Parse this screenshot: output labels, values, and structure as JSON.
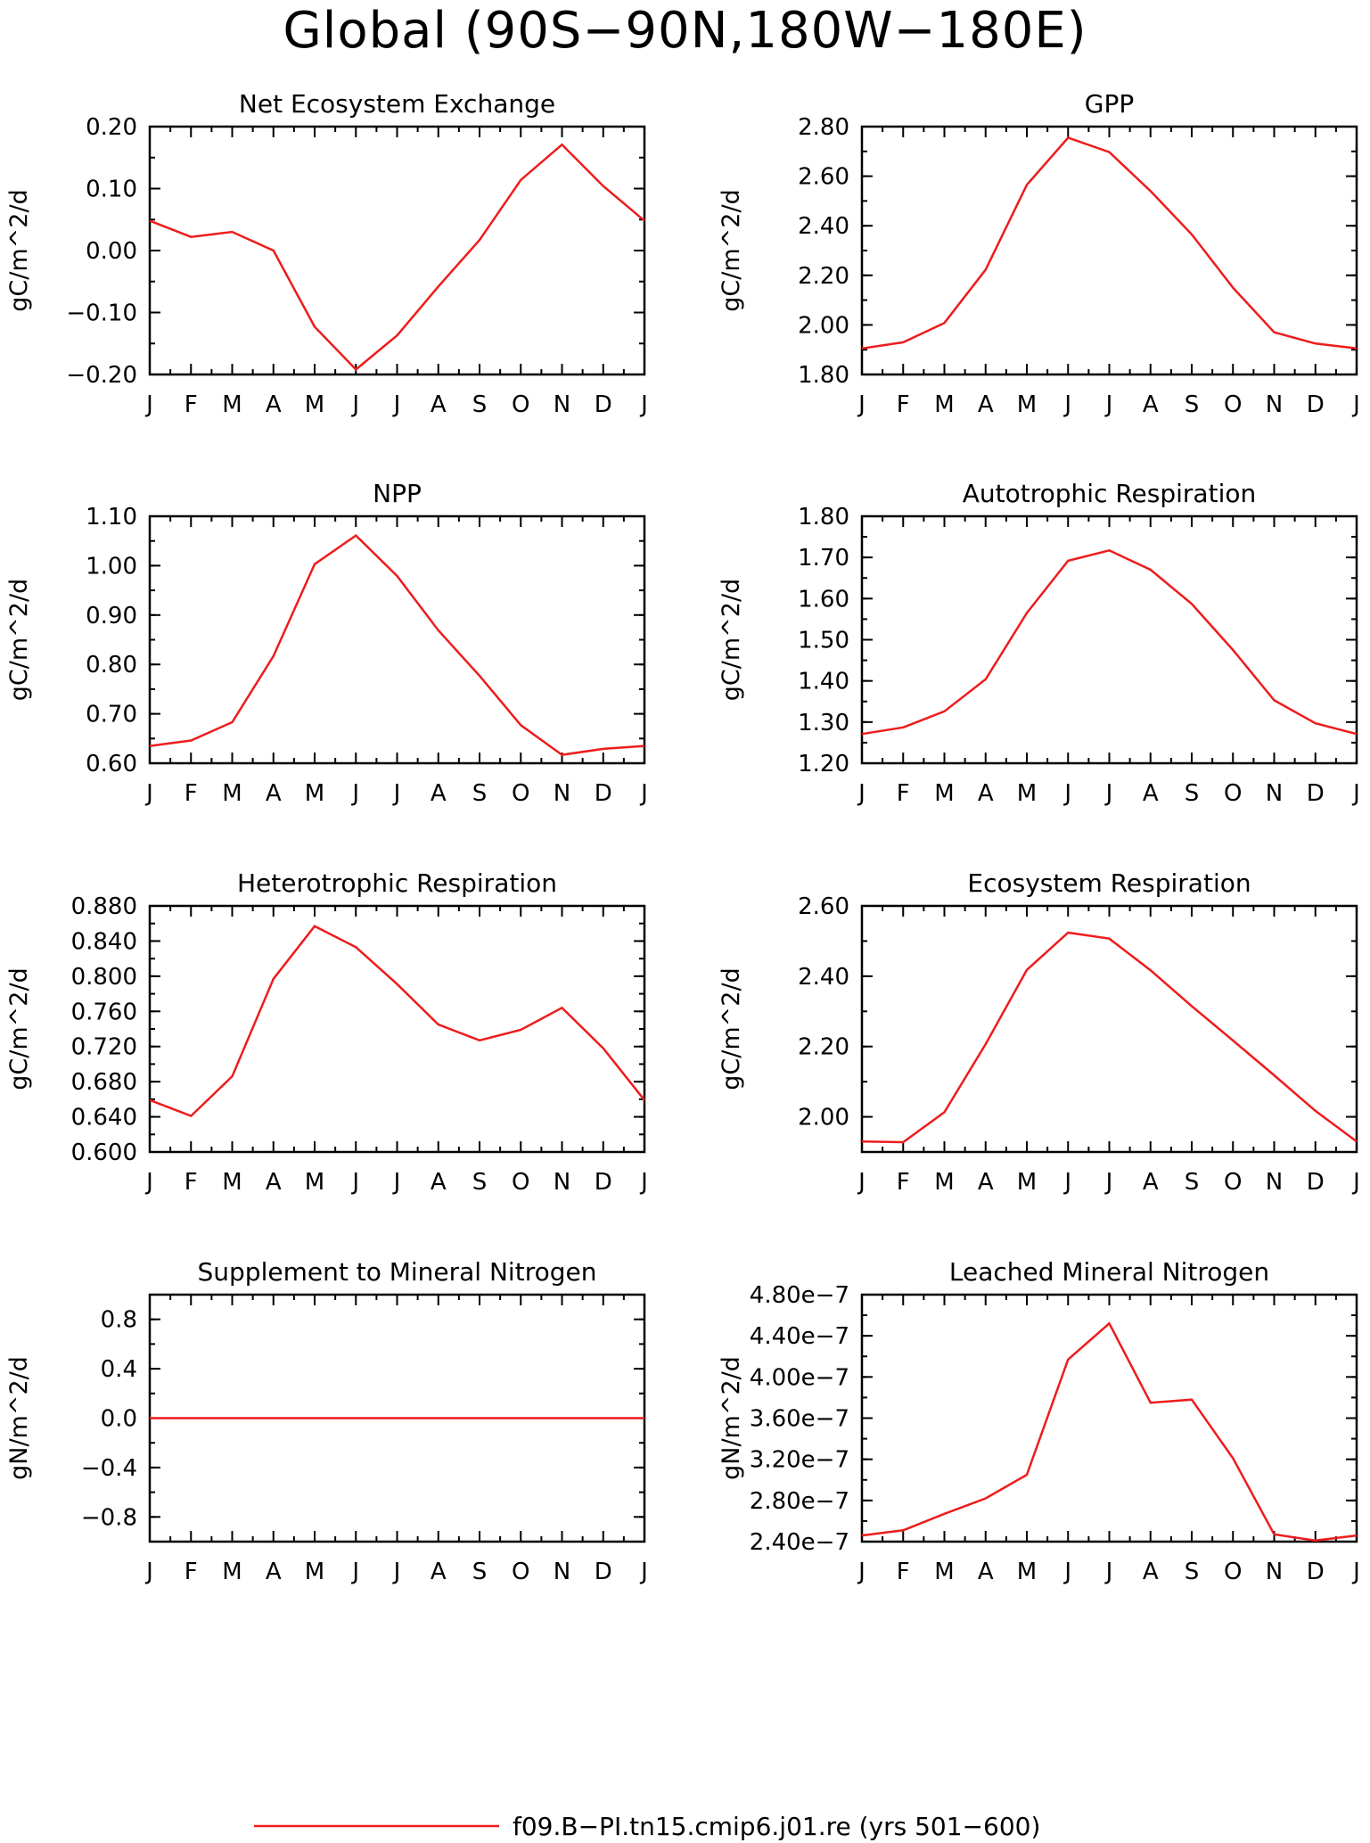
{
  "title": "Global (90S-90N,180W-180E)",
  "legend": {
    "label": "f09.B-PI.tn15.cmip6.j01.re (yrs 501-600)",
    "color": "#ee1c1c"
  },
  "chart_data": [
    {
      "type": "line",
      "title": "Net Ecosystem Exchange",
      "ylabel": "gC/m^2/d",
      "categories": [
        "J",
        "F",
        "M",
        "A",
        "M",
        "J",
        "J",
        "A",
        "S",
        "O",
        "N",
        "D",
        "J"
      ],
      "ylim": [
        -0.2,
        0.2
      ],
      "yticks": [
        -0.2,
        -0.1,
        0.0,
        0.1,
        0.2
      ],
      "ytick_labels": [
        "-0.20",
        "-0.10",
        "0.00",
        "0.10",
        "0.20"
      ],
      "series": [
        {
          "values": [
            0.048,
            0.022,
            0.03,
            0.0,
            -0.123,
            -0.192,
            -0.137,
            -0.058,
            0.017,
            0.114,
            0.171,
            0.104,
            0.048
          ]
        }
      ]
    },
    {
      "type": "line",
      "title": "GPP",
      "ylabel": "gC/m^2/d",
      "categories": [
        "J",
        "F",
        "M",
        "A",
        "M",
        "J",
        "J",
        "A",
        "S",
        "O",
        "N",
        "D",
        "J"
      ],
      "ylim": [
        1.8,
        2.8
      ],
      "yticks": [
        1.8,
        2.0,
        2.2,
        2.4,
        2.6,
        2.8
      ],
      "ytick_labels": [
        "1.80",
        "2.00",
        "2.20",
        "2.40",
        "2.60",
        "2.80"
      ],
      "series": [
        {
          "values": [
            1.905,
            1.93,
            2.008,
            2.223,
            2.565,
            2.755,
            2.697,
            2.54,
            2.365,
            2.15,
            1.97,
            1.925,
            1.905
          ]
        }
      ]
    },
    {
      "type": "line",
      "title": "NPP",
      "ylabel": "gC/m^2/d",
      "categories": [
        "J",
        "F",
        "M",
        "A",
        "M",
        "J",
        "J",
        "A",
        "S",
        "O",
        "N",
        "D",
        "J"
      ],
      "ylim": [
        0.6,
        1.1
      ],
      "yticks": [
        0.6,
        0.7,
        0.8,
        0.9,
        1.0,
        1.1
      ],
      "ytick_labels": [
        "0.60",
        "0.70",
        "0.80",
        "0.90",
        "1.00",
        "1.10"
      ],
      "series": [
        {
          "values": [
            0.635,
            0.646,
            0.683,
            0.817,
            1.003,
            1.061,
            0.979,
            0.869,
            0.777,
            0.677,
            0.617,
            0.629,
            0.635
          ]
        }
      ]
    },
    {
      "type": "line",
      "title": "Autotrophic Respiration",
      "ylabel": "gC/m^2/d",
      "categories": [
        "J",
        "F",
        "M",
        "A",
        "M",
        "J",
        "J",
        "A",
        "S",
        "O",
        "N",
        "D",
        "J"
      ],
      "ylim": [
        1.2,
        1.8
      ],
      "yticks": [
        1.2,
        1.3,
        1.4,
        1.5,
        1.6,
        1.7,
        1.8
      ],
      "ytick_labels": [
        "1.20",
        "1.30",
        "1.40",
        "1.50",
        "1.60",
        "1.70",
        "1.80"
      ],
      "series": [
        {
          "values": [
            1.271,
            1.287,
            1.326,
            1.404,
            1.565,
            1.692,
            1.717,
            1.67,
            1.587,
            1.475,
            1.353,
            1.297,
            1.271
          ]
        }
      ]
    },
    {
      "type": "line",
      "title": "Heterotrophic Respiration",
      "ylabel": "gC/m^2/d",
      "categories": [
        "J",
        "F",
        "M",
        "A",
        "M",
        "J",
        "J",
        "A",
        "S",
        "O",
        "N",
        "D",
        "J"
      ],
      "ylim": [
        0.6,
        0.88
      ],
      "yticks": [
        0.6,
        0.64,
        0.68,
        0.72,
        0.76,
        0.8,
        0.84,
        0.88
      ],
      "ytick_labels": [
        "0.600",
        "0.640",
        "0.680",
        "0.720",
        "0.760",
        "0.800",
        "0.840",
        "0.880"
      ],
      "series": [
        {
          "values": [
            0.659,
            0.641,
            0.686,
            0.797,
            0.857,
            0.833,
            0.791,
            0.745,
            0.727,
            0.739,
            0.764,
            0.718,
            0.659
          ]
        }
      ]
    },
    {
      "type": "line",
      "title": "Ecosystem Respiration",
      "ylabel": "gC/m^2/d",
      "categories": [
        "J",
        "F",
        "M",
        "A",
        "M",
        "J",
        "J",
        "A",
        "S",
        "O",
        "N",
        "D",
        "J"
      ],
      "ylim": [
        1.9,
        2.6
      ],
      "yticks": [
        2.0,
        2.2,
        2.4,
        2.6
      ],
      "ytick_labels": [
        "2.00",
        "2.20",
        "2.40",
        "2.60"
      ],
      "series": [
        {
          "values": [
            1.93,
            1.928,
            2.013,
            2.207,
            2.418,
            2.524,
            2.507,
            2.417,
            2.315,
            2.217,
            2.118,
            2.017,
            1.93
          ]
        }
      ]
    },
    {
      "type": "line",
      "title": "Supplement to Mineral Nitrogen",
      "ylabel": "gN/m^2/d",
      "categories": [
        "J",
        "F",
        "M",
        "A",
        "M",
        "J",
        "J",
        "A",
        "S",
        "O",
        "N",
        "D",
        "J"
      ],
      "ylim": [
        -1.0,
        1.0
      ],
      "yticks": [
        -0.8,
        -0.4,
        0.0,
        0.4,
        0.8
      ],
      "ytick_labels": [
        "-0.8",
        "-0.4",
        "0.0",
        "0.4",
        "0.8"
      ],
      "series": [
        {
          "values": [
            0,
            0,
            0,
            0,
            0,
            0,
            0,
            0,
            0,
            0,
            0,
            0,
            0
          ]
        }
      ]
    },
    {
      "type": "line",
      "title": "Leached Mineral Nitrogen",
      "ylabel": "gN/m^2/d",
      "categories": [
        "J",
        "F",
        "M",
        "A",
        "M",
        "J",
        "J",
        "A",
        "S",
        "O",
        "N",
        "D",
        "J"
      ],
      "ylim": [
        2.4e-07,
        4.8e-07
      ],
      "yticks": [
        2.4e-07,
        2.8e-07,
        3.2e-07,
        3.6e-07,
        4e-07,
        4.4e-07,
        4.8e-07
      ],
      "ytick_labels": [
        "2.40e-7",
        "2.80e-7",
        "3.20e-7",
        "3.60e-7",
        "4.00e-7",
        "4.40e-7",
        "4.80e-7"
      ],
      "series": [
        {
          "values": [
            2.46e-07,
            2.51e-07,
            2.67e-07,
            2.82e-07,
            3.05e-07,
            4.17e-07,
            4.52e-07,
            3.75e-07,
            3.78e-07,
            3.21e-07,
            2.47e-07,
            2.41e-07,
            2.46e-07
          ]
        }
      ]
    }
  ]
}
